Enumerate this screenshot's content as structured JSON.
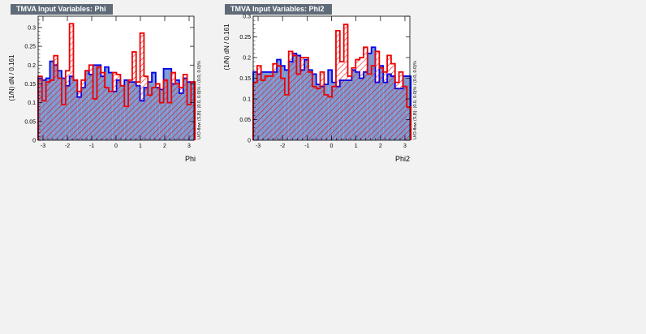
{
  "panels": [
    {
      "title": "TMVA Input Variables: Phi",
      "side_text": "U/O-flow (S,B): (0.0, 0.0)% / (0.0, 0.0)%",
      "ylabel": "(1/N) dN / 0.161",
      "xlabel": "Phi"
    },
    {
      "title": "TMVA Input Variables: Phi2",
      "side_text": "U/O-flow (S,B): (0.0, 0.0)% / (0.0, 0.0)%",
      "ylabel": "(1/N) dN / 0.161",
      "xlabel": "Phi2"
    }
  ],
  "chart_data": [
    {
      "type": "histogram",
      "title": "TMVA Input Variables: Phi",
      "xlabel": "Phi",
      "ylabel": "(1/N) dN / 0.161",
      "xlim": [
        -3.2,
        3.2
      ],
      "ylim": [
        0,
        0.33
      ],
      "x_ticks": [
        -3,
        -2,
        -1,
        0,
        1,
        2,
        3
      ],
      "y_ticks": [
        0,
        0.05,
        0.1,
        0.15,
        0.2,
        0.25,
        0.3
      ],
      "y_tick_labels": [
        "0",
        "0.05",
        "0.1",
        "0.15",
        "0.2",
        "0.25",
        "0.3"
      ],
      "bin_edges_start": -3.2,
      "bin_width": 0.161,
      "series": [
        {
          "style": "filled",
          "color": "#0000ee",
          "fill": "#7d99d1",
          "values": [
            0.165,
            0.16,
            0.165,
            0.21,
            0.2,
            0.185,
            0.165,
            0.145,
            0.17,
            0.16,
            0.115,
            0.14,
            0.185,
            0.175,
            0.2,
            0.2,
            0.17,
            0.195,
            0.18,
            0.13,
            0.16,
            0.145,
            0.16,
            0.155,
            0.155,
            0.145,
            0.105,
            0.14,
            0.155,
            0.18,
            0.14,
            0.135,
            0.19,
            0.19,
            0.15,
            0.16,
            0.125,
            0.165,
            0.155,
            0.155
          ]
        },
        {
          "style": "hatched",
          "color": "#ee0000",
          "fill": "#ee0000",
          "values": [
            0.17,
            0.105,
            0.155,
            0.16,
            0.225,
            0.165,
            0.095,
            0.185,
            0.31,
            0.16,
            0.13,
            0.16,
            0.185,
            0.2,
            0.11,
            0.195,
            0.18,
            0.14,
            0.13,
            0.18,
            0.175,
            0.145,
            0.09,
            0.16,
            0.235,
            0.155,
            0.285,
            0.17,
            0.12,
            0.14,
            0.15,
            0.1,
            0.16,
            0.1,
            0.18,
            0.15,
            0.14,
            0.175,
            0.095,
            0.155
          ]
        }
      ]
    },
    {
      "type": "histogram",
      "title": "TMVA Input Variables: Phi2",
      "xlabel": "Phi2",
      "ylabel": "(1/N) dN / 0.161",
      "xlim": [
        -3.2,
        3.2
      ],
      "ylim": [
        0,
        0.3
      ],
      "x_ticks": [
        -3,
        -2,
        -1,
        0,
        1,
        2,
        3
      ],
      "y_ticks": [
        0,
        0.05,
        0.1,
        0.15,
        0.2,
        0.25,
        0.3
      ],
      "y_tick_labels": [
        "0",
        "0.05",
        "0.1",
        "0.15",
        "0.2",
        "0.25",
        "0.3"
      ],
      "bin_edges_start": -3.2,
      "bin_width": 0.161,
      "series": [
        {
          "style": "filled",
          "color": "#0000ee",
          "fill": "#7d99d1",
          "values": [
            0.165,
            0.16,
            0.165,
            0.165,
            0.165,
            0.165,
            0.195,
            0.18,
            0.17,
            0.19,
            0.21,
            0.205,
            0.17,
            0.195,
            0.17,
            0.16,
            0.135,
            0.13,
            0.135,
            0.17,
            0.14,
            0.13,
            0.145,
            0.145,
            0.145,
            0.17,
            0.165,
            0.15,
            0.165,
            0.21,
            0.225,
            0.14,
            0.18,
            0.14,
            0.16,
            0.155,
            0.125,
            0.125,
            0.155,
            0.155
          ]
        },
        {
          "style": "hatched",
          "color": "#ee0000",
          "fill": "#ee0000",
          "values": [
            0.14,
            0.18,
            0.145,
            0.155,
            0.155,
            0.185,
            0.18,
            0.15,
            0.11,
            0.215,
            0.205,
            0.16,
            0.2,
            0.2,
            0.165,
            0.13,
            0.125,
            0.165,
            0.11,
            0.105,
            0.13,
            0.265,
            0.19,
            0.28,
            0.155,
            0.175,
            0.195,
            0.2,
            0.225,
            0.16,
            0.18,
            0.215,
            0.175,
            0.165,
            0.205,
            0.185,
            0.14,
            0.165,
            0.13,
            0.08
          ]
        }
      ]
    }
  ]
}
